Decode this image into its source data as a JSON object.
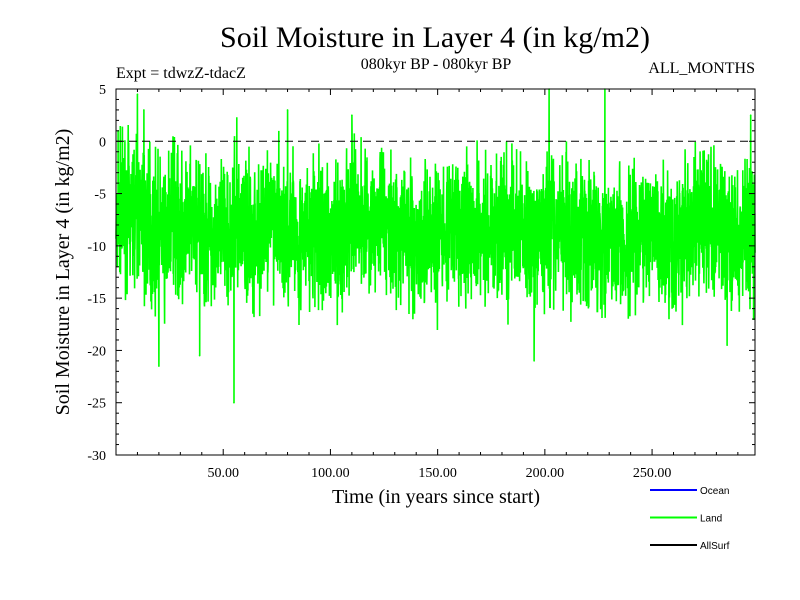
{
  "chart_data": {
    "type": "line",
    "title": "Soil Moisture in Layer 4 (in kg/m2)",
    "subtitle_left": "Expt = tdwzZ-tdacZ",
    "subtitle_center": "080kyr BP - 080kyr BP",
    "subtitle_right": "ALL_MONTHS",
    "xlabel": "Time (in years since start)",
    "ylabel": "Soil Moisture in Layer 4 (in kg/m2)",
    "xlim": [
      0,
      298
    ],
    "ylim": [
      -30,
      5
    ],
    "x_ticks": [
      50,
      100,
      150,
      200,
      250
    ],
    "x_tick_labels": [
      "50.00",
      "100.00",
      "150.00",
      "200.00",
      "250.00"
    ],
    "y_ticks": [
      5,
      0,
      -5,
      -10,
      -15,
      -20,
      -25,
      -30
    ],
    "y_tick_labels": [
      "5",
      "0",
      "-5",
      "-10",
      "-15",
      "-20",
      "-25",
      "-30"
    ],
    "reference_line": {
      "y": 0,
      "style": "dashed"
    },
    "series": [
      {
        "name": "Land",
        "color": "#00ff00",
        "sampling": "monthly",
        "n_points": 3576,
        "mean": -8.5,
        "typical_range": [
          -16,
          -2
        ],
        "notable_points": [
          {
            "x": 1,
            "y": 1
          },
          {
            "x": 10,
            "y": 4.5
          },
          {
            "x": 13,
            "y": 3
          },
          {
            "x": 20,
            "y": -21.5
          },
          {
            "x": 39,
            "y": -20.5
          },
          {
            "x": 55,
            "y": -25
          },
          {
            "x": 80,
            "y": 3
          },
          {
            "x": 110,
            "y": 2.5
          },
          {
            "x": 195,
            "y": -21
          },
          {
            "x": 202,
            "y": 5
          },
          {
            "x": 228,
            "y": 5
          },
          {
            "x": 285,
            "y": -19.5
          },
          {
            "x": 296,
            "y": 2.5
          }
        ]
      }
    ],
    "legend": {
      "position": "bottom-right",
      "entries": [
        {
          "label": "Ocean",
          "color": "#0000ff"
        },
        {
          "label": "Land",
          "color": "#00ff00"
        },
        {
          "label": "AllSurf",
          "color": "#000000"
        }
      ]
    }
  }
}
